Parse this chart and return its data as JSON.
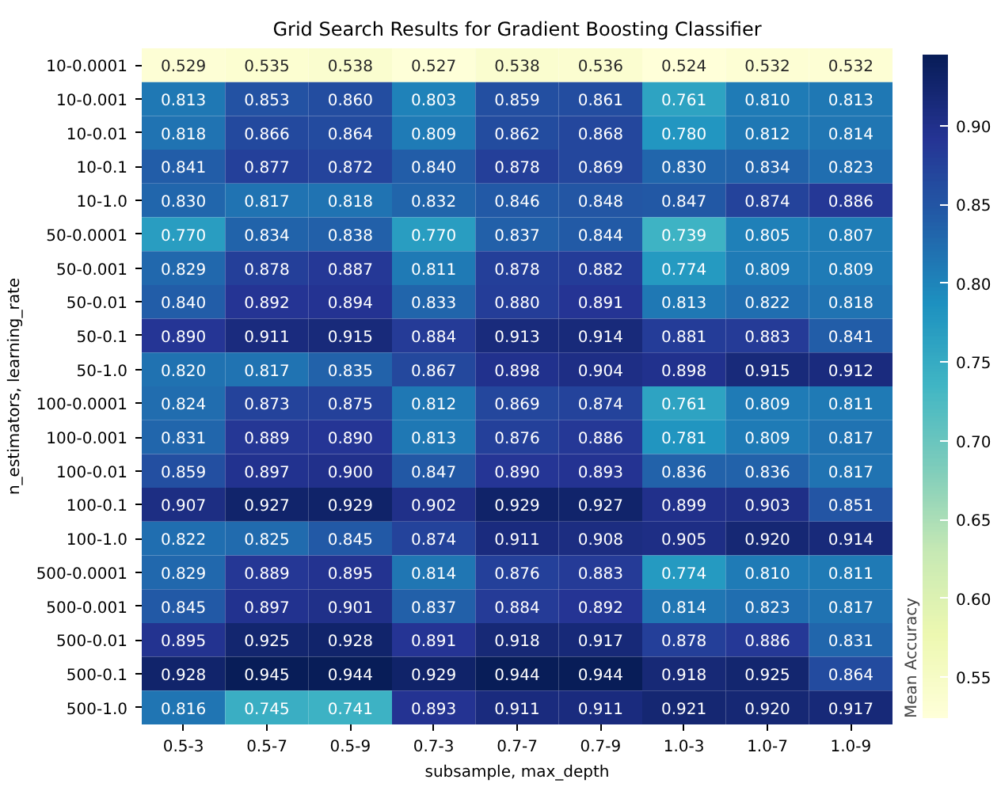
{
  "chart_data": {
    "type": "heatmap",
    "title": "Grid Search Results for Gradient Boosting Classifier",
    "xlabel": "subsample, max_depth",
    "ylabel": "n_estimators, learning_rate",
    "clabel": "Mean Accuracy",
    "categories": [
      "0.5-3",
      "0.5-7",
      "0.5-9",
      "0.7-3",
      "0.7-7",
      "0.7-9",
      "1.0-3",
      "1.0-7",
      "1.0-9"
    ],
    "y_categories": [
      "10-0.0001",
      "10-0.001",
      "10-0.01",
      "10-0.1",
      "10-1.0",
      "50-0.0001",
      "50-0.001",
      "50-0.01",
      "50-0.1",
      "50-1.0",
      "100-0.0001",
      "100-0.001",
      "100-0.01",
      "100-0.1",
      "100-1.0",
      "500-0.0001",
      "500-0.001",
      "500-0.01",
      "500-0.1",
      "500-1.0"
    ],
    "cells": [
      [
        0.529,
        0.535,
        0.538,
        0.527,
        0.538,
        0.536,
        0.524,
        0.532,
        0.532
      ],
      [
        0.813,
        0.853,
        0.86,
        0.803,
        0.859,
        0.861,
        0.761,
        0.81,
        0.813
      ],
      [
        0.818,
        0.866,
        0.864,
        0.809,
        0.862,
        0.868,
        0.78,
        0.812,
        0.814
      ],
      [
        0.841,
        0.877,
        0.872,
        0.84,
        0.878,
        0.869,
        0.83,
        0.834,
        0.823
      ],
      [
        0.83,
        0.817,
        0.818,
        0.832,
        0.846,
        0.848,
        0.847,
        0.874,
        0.886
      ],
      [
        0.77,
        0.834,
        0.838,
        0.77,
        0.837,
        0.844,
        0.739,
        0.805,
        0.807
      ],
      [
        0.829,
        0.878,
        0.887,
        0.811,
        0.878,
        0.882,
        0.774,
        0.809,
        0.809
      ],
      [
        0.84,
        0.892,
        0.894,
        0.833,
        0.88,
        0.891,
        0.813,
        0.822,
        0.818
      ],
      [
        0.89,
        0.911,
        0.915,
        0.884,
        0.913,
        0.914,
        0.881,
        0.883,
        0.841
      ],
      [
        0.82,
        0.817,
        0.835,
        0.867,
        0.898,
        0.904,
        0.898,
        0.915,
        0.912
      ],
      [
        0.824,
        0.873,
        0.875,
        0.812,
        0.869,
        0.874,
        0.761,
        0.809,
        0.811
      ],
      [
        0.831,
        0.889,
        0.89,
        0.813,
        0.876,
        0.886,
        0.781,
        0.809,
        0.817
      ],
      [
        0.859,
        0.897,
        0.9,
        0.847,
        0.89,
        0.893,
        0.836,
        0.836,
        0.817
      ],
      [
        0.907,
        0.927,
        0.929,
        0.902,
        0.929,
        0.927,
        0.899,
        0.903,
        0.851
      ],
      [
        0.822,
        0.825,
        0.845,
        0.874,
        0.911,
        0.908,
        0.905,
        0.92,
        0.914
      ],
      [
        0.829,
        0.889,
        0.895,
        0.814,
        0.876,
        0.883,
        0.774,
        0.81,
        0.811
      ],
      [
        0.845,
        0.897,
        0.901,
        0.837,
        0.884,
        0.892,
        0.814,
        0.823,
        0.817
      ],
      [
        0.895,
        0.925,
        0.928,
        0.891,
        0.918,
        0.917,
        0.878,
        0.886,
        0.831
      ],
      [
        0.928,
        0.945,
        0.944,
        0.929,
        0.944,
        0.944,
        0.918,
        0.925,
        0.864
      ],
      [
        0.816,
        0.745,
        0.741,
        0.893,
        0.911,
        0.911,
        0.921,
        0.92,
        0.917
      ]
    ],
    "cell_labels": [
      [
        "0.529",
        "0.535",
        "0.538",
        "0.527",
        "0.538",
        "0.536",
        "0.524",
        "0.532",
        "0.532"
      ],
      [
        "0.813",
        "0.853",
        "0.860",
        "0.803",
        "0.859",
        "0.861",
        "0.761",
        "0.810",
        "0.813"
      ],
      [
        "0.818",
        "0.866",
        "0.864",
        "0.809",
        "0.862",
        "0.868",
        "0.780",
        "0.812",
        "0.814"
      ],
      [
        "0.841",
        "0.877",
        "0.872",
        "0.840",
        "0.878",
        "0.869",
        "0.830",
        "0.834",
        "0.823"
      ],
      [
        "0.830",
        "0.817",
        "0.818",
        "0.832",
        "0.846",
        "0.848",
        "0.847",
        "0.874",
        "0.886"
      ],
      [
        "0.770",
        "0.834",
        "0.838",
        "0.770",
        "0.837",
        "0.844",
        "0.739",
        "0.805",
        "0.807"
      ],
      [
        "0.829",
        "0.878",
        "0.887",
        "0.811",
        "0.878",
        "0.882",
        "0.774",
        "0.809",
        "0.809"
      ],
      [
        "0.840",
        "0.892",
        "0.894",
        "0.833",
        "0.880",
        "0.891",
        "0.813",
        "0.822",
        "0.818"
      ],
      [
        "0.890",
        "0.911",
        "0.915",
        "0.884",
        "0.913",
        "0.914",
        "0.881",
        "0.883",
        "0.841"
      ],
      [
        "0.820",
        "0.817",
        "0.835",
        "0.867",
        "0.898",
        "0.904",
        "0.898",
        "0.915",
        "0.912"
      ],
      [
        "0.824",
        "0.873",
        "0.875",
        "0.812",
        "0.869",
        "0.874",
        "0.761",
        "0.809",
        "0.811"
      ],
      [
        "0.831",
        "0.889",
        "0.890",
        "0.813",
        "0.876",
        "0.886",
        "0.781",
        "0.809",
        "0.817"
      ],
      [
        "0.859",
        "0.897",
        "0.900",
        "0.847",
        "0.890",
        "0.893",
        "0.836",
        "0.836",
        "0.817"
      ],
      [
        "0.907",
        "0.927",
        "0.929",
        "0.902",
        "0.929",
        "0.927",
        "0.899",
        "0.903",
        "0.851"
      ],
      [
        "0.822",
        "0.825",
        "0.845",
        "0.874",
        "0.911",
        "0.908",
        "0.905",
        "0.920",
        "0.914"
      ],
      [
        "0.829",
        "0.889",
        "0.895",
        "0.814",
        "0.876",
        "0.883",
        "0.774",
        "0.810",
        "0.811"
      ],
      [
        "0.845",
        "0.897",
        "0.901",
        "0.837",
        "0.884",
        "0.892",
        "0.814",
        "0.823",
        "0.817"
      ],
      [
        "0.895",
        "0.925",
        "0.928",
        "0.891",
        "0.918",
        "0.917",
        "0.878",
        "0.886",
        "0.831"
      ],
      [
        "0.928",
        "0.945",
        "0.944",
        "0.929",
        "0.944",
        "0.944",
        "0.918",
        "0.925",
        "0.864"
      ],
      [
        "0.816",
        "0.745",
        "0.741",
        "0.893",
        "0.911",
        "0.911",
        "0.921",
        "0.920",
        "0.917"
      ]
    ],
    "clim": [
      0.524,
      0.945
    ],
    "cticks": [
      0.55,
      {
        "value": 0.6,
        "label": "0.60"
      },
      0.65,
      {
        "value": 0.7,
        "label": "0.70"
      },
      0.75,
      {
        "value": 0.8,
        "label": "0.80"
      },
      0.85,
      {
        "value": 0.9,
        "label": "0.90"
      }
    ]
  }
}
